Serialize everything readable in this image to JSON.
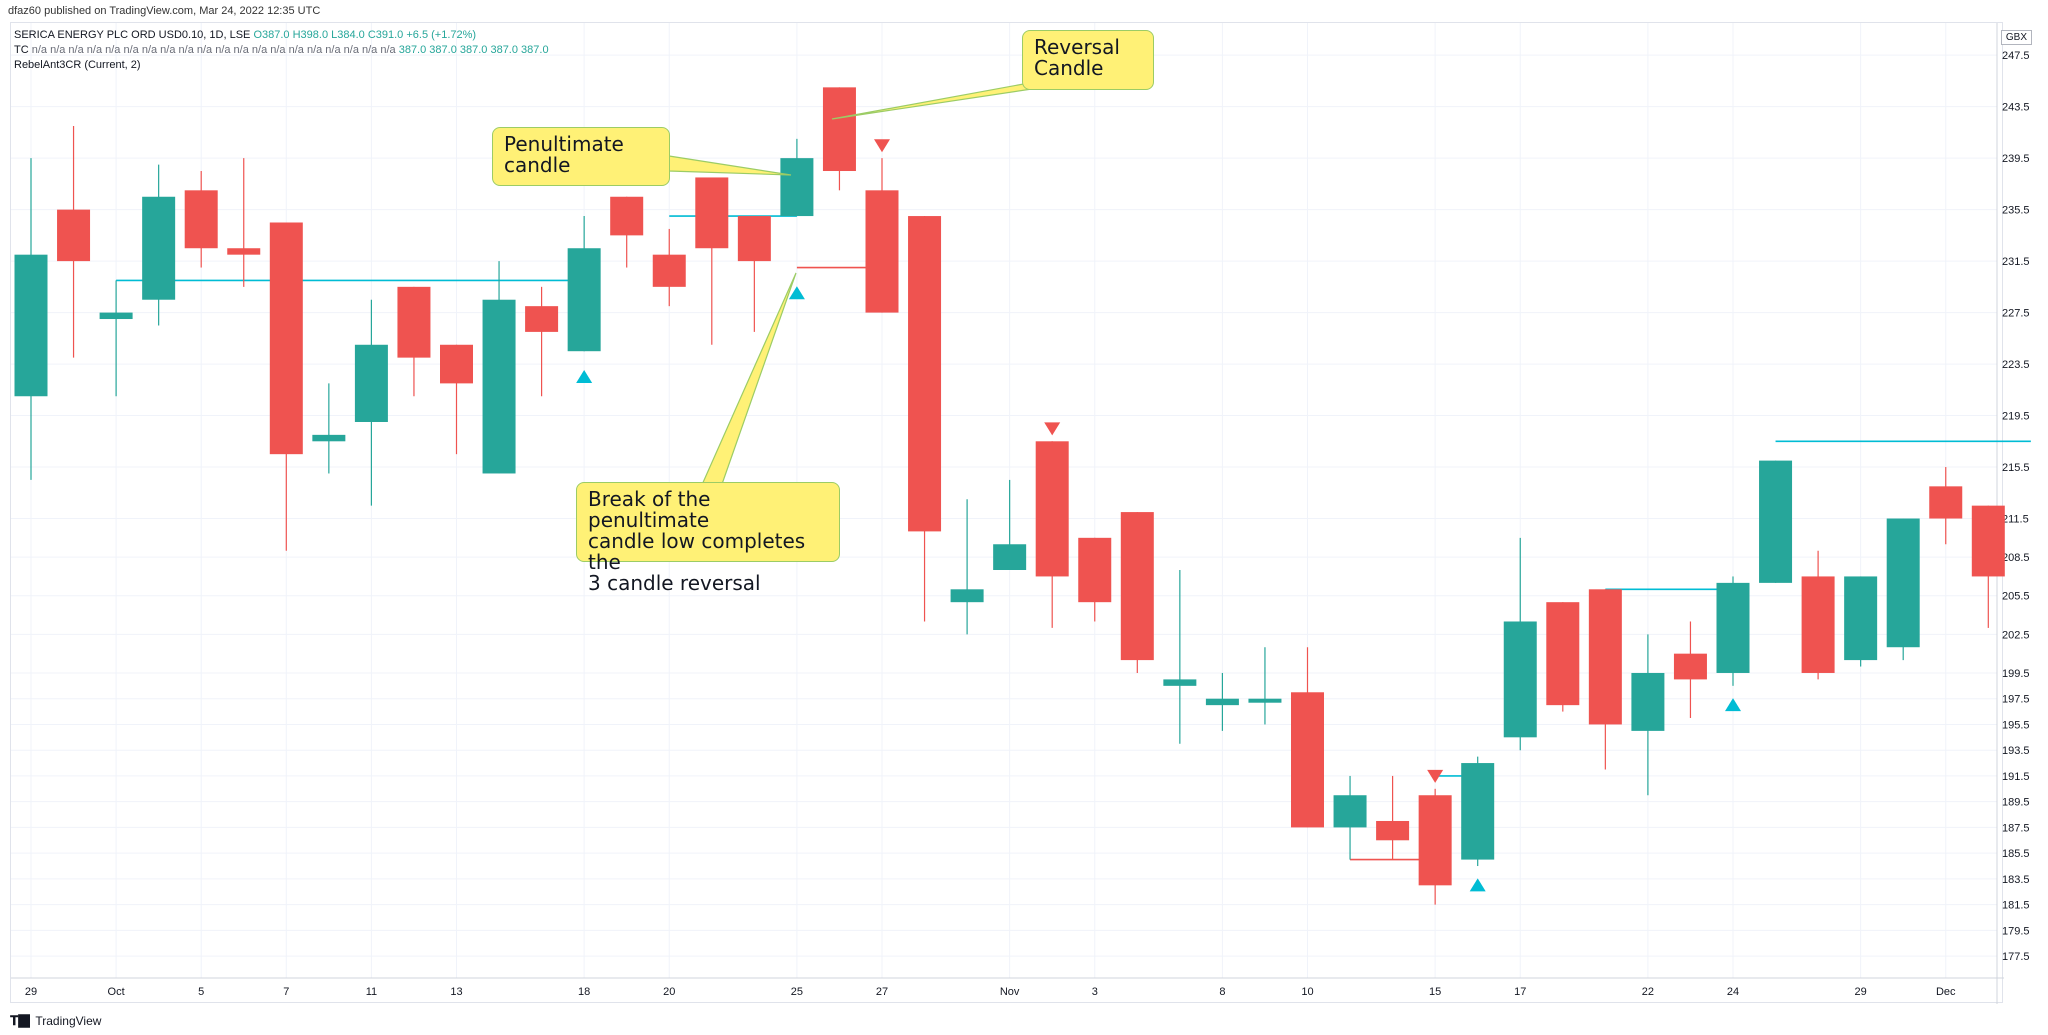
{
  "header": {
    "published": "dfaz60 published on TradingView.com, Mar 24, 2022 12:35 UTC"
  },
  "legend": {
    "symbol": "SERICA ENERGY PLC ORD USD0.10, 1D, LSE",
    "ohlc": "O387.0 H398.0 L384.0 C391.0 +6.5 (+1.72%)",
    "indicator1_name": "TC",
    "indicator1_values": "n/a n/a n/a n/a n/a n/a n/a n/a n/a n/a n/a n/a n/a n/a n/a n/a n/a n/a n/a n/a",
    "indicator1_nums": "387.0 387.0 387.0 387.0 387.0",
    "indicator2": "RebelAnt3CR (Current, 2)"
  },
  "currency": "GBX",
  "footer": {
    "brand": "TradingView"
  },
  "annotations": {
    "reversal": "Reversal\nCandle",
    "penultimate": "Penultimate\ncandle",
    "break": "Break of the penultimate\ncandle low completes the\n3 candle reversal"
  },
  "colors": {
    "up": "#26a69a",
    "down": "#ef5350",
    "grid": "#f0f3fa",
    "cyan": "#00bcd4",
    "note_bg": "#fff176",
    "note_border": "#9ccc65"
  },
  "chart_data": {
    "type": "candlestick",
    "ylim": [
      175.8,
      250.0
    ],
    "y_ticks": [
      "177.5",
      "179.5",
      "181.5",
      "183.5",
      "185.5",
      "187.5",
      "189.5",
      "191.5",
      "193.5",
      "195.5",
      "197.5",
      "199.5",
      "202.5",
      "205.5",
      "208.5",
      "211.5",
      "215.5",
      "219.5",
      "223.5",
      "227.5",
      "231.5",
      "235.5",
      "239.5",
      "243.5",
      "247.5"
    ],
    "x_ticks": [
      {
        "i": 0,
        "label": "29"
      },
      {
        "i": 2,
        "label": "Oct"
      },
      {
        "i": 4,
        "label": "5"
      },
      {
        "i": 6,
        "label": "7"
      },
      {
        "i": 8,
        "label": "11"
      },
      {
        "i": 10,
        "label": "13"
      },
      {
        "i": 13,
        "label": "18"
      },
      {
        "i": 15,
        "label": "20"
      },
      {
        "i": 18,
        "label": "25"
      },
      {
        "i": 20,
        "label": "27"
      },
      {
        "i": 23,
        "label": "Nov"
      },
      {
        "i": 25,
        "label": "3"
      },
      {
        "i": 28,
        "label": "8"
      },
      {
        "i": 30,
        "label": "10"
      },
      {
        "i": 33,
        "label": "15"
      },
      {
        "i": 35,
        "label": "17"
      },
      {
        "i": 38,
        "label": "22"
      },
      {
        "i": 40,
        "label": "24"
      },
      {
        "i": 43,
        "label": "29"
      },
      {
        "i": 45,
        "label": "Dec"
      }
    ],
    "candles": [
      {
        "o": 221.0,
        "h": 239.5,
        "l": 214.5,
        "c": 232.0
      },
      {
        "o": 235.5,
        "h": 242.0,
        "l": 224.0,
        "c": 231.5
      },
      {
        "o": 227.0,
        "h": 230.0,
        "l": 221.0,
        "c": 227.5
      },
      {
        "o": 228.5,
        "h": 239.0,
        "l": 226.5,
        "c": 236.5
      },
      {
        "o": 237.0,
        "h": 238.5,
        "l": 231.0,
        "c": 232.5
      },
      {
        "o": 232.5,
        "h": 239.5,
        "l": 229.5,
        "c": 232.0
      },
      {
        "o": 234.5,
        "h": 234.5,
        "l": 209.0,
        "c": 216.5
      },
      {
        "o": 217.5,
        "h": 222.0,
        "l": 215.0,
        "c": 218.0
      },
      {
        "o": 219.0,
        "h": 228.5,
        "l": 212.5,
        "c": 225.0
      },
      {
        "o": 229.5,
        "h": 229.5,
        "l": 221.0,
        "c": 224.0
      },
      {
        "o": 225.0,
        "h": 225.0,
        "l": 216.5,
        "c": 222.0
      },
      {
        "o": 215.0,
        "h": 231.5,
        "l": 215.0,
        "c": 228.5
      },
      {
        "o": 228.0,
        "h": 229.5,
        "l": 221.0,
        "c": 226.0
      },
      {
        "o": 224.5,
        "h": 235.0,
        "l": 224.5,
        "c": 232.5
      },
      {
        "o": 236.5,
        "h": 236.5,
        "l": 231.0,
        "c": 233.5
      },
      {
        "o": 232.0,
        "h": 234.0,
        "l": 228.0,
        "c": 229.5
      },
      {
        "o": 238.0,
        "h": 238.0,
        "l": 225.0,
        "c": 232.5
      },
      {
        "o": 235.0,
        "h": 235.0,
        "l": 226.0,
        "c": 231.5
      },
      {
        "o": 235.0,
        "h": 241.0,
        "l": 235.0,
        "c": 239.5
      },
      {
        "o": 245.0,
        "h": 245.0,
        "l": 237.0,
        "c": 238.5
      },
      {
        "o": 237.0,
        "h": 239.5,
        "l": 227.5,
        "c": 227.5
      },
      {
        "o": 235.0,
        "h": 235.0,
        "l": 203.5,
        "c": 210.5
      },
      {
        "o": 205.0,
        "h": 213.0,
        "l": 202.5,
        "c": 206.0
      },
      {
        "o": 207.5,
        "h": 214.5,
        "l": 207.5,
        "c": 209.5
      },
      {
        "o": 217.5,
        "h": 217.5,
        "l": 203.0,
        "c": 207.0
      },
      {
        "o": 210.0,
        "h": 210.0,
        "l": 203.5,
        "c": 205.0
      },
      {
        "o": 212.0,
        "h": 212.0,
        "l": 199.5,
        "c": 200.5
      },
      {
        "o": 198.5,
        "h": 207.5,
        "l": 194.0,
        "c": 199.0
      },
      {
        "o": 197.0,
        "h": 199.5,
        "l": 195.0,
        "c": 197.5
      },
      {
        "o": 197.5,
        "h": 201.5,
        "l": 195.5,
        "c": 197.5
      },
      {
        "o": 198.0,
        "h": 201.5,
        "l": 187.5,
        "c": 187.5
      },
      {
        "o": 187.5,
        "h": 191.5,
        "l": 185.0,
        "c": 190.0
      },
      {
        "o": 188.0,
        "h": 191.5,
        "l": 185.0,
        "c": 186.5
      },
      {
        "o": 190.0,
        "h": 190.5,
        "l": 181.5,
        "c": 183.0
      },
      {
        "o": 185.0,
        "h": 193.0,
        "l": 184.5,
        "c": 192.5
      },
      {
        "o": 194.5,
        "h": 210.0,
        "l": 193.5,
        "c": 203.5
      },
      {
        "o": 205.0,
        "h": 205.0,
        "l": 196.5,
        "c": 197.0
      },
      {
        "o": 206.0,
        "h": 206.0,
        "l": 192.0,
        "c": 195.5
      },
      {
        "o": 195.0,
        "h": 202.5,
        "l": 190.0,
        "c": 199.5
      },
      {
        "o": 201.0,
        "h": 203.5,
        "l": 196.0,
        "c": 199.0
      },
      {
        "o": 199.5,
        "h": 207.0,
        "l": 198.5,
        "c": 206.5
      },
      {
        "o": 206.5,
        "h": 216.0,
        "l": 206.5,
        "c": 216.0
      },
      {
        "o": 207.0,
        "h": 209.0,
        "l": 199.0,
        "c": 199.5
      },
      {
        "o": 200.5,
        "h": 207.0,
        "l": 200.0,
        "c": 207.0
      },
      {
        "o": 201.5,
        "h": 211.5,
        "l": 200.5,
        "c": 211.5
      },
      {
        "o": 214.0,
        "h": 215.5,
        "l": 209.5,
        "c": 211.5
      },
      {
        "o": 212.5,
        "h": 212.5,
        "l": 203.0,
        "c": 207.0
      }
    ],
    "markers": [
      {
        "i": 13,
        "type": "up",
        "price": 222.5
      },
      {
        "i": 18,
        "type": "up",
        "price": 229.0
      },
      {
        "i": 20,
        "type": "down",
        "price": 240.5
      },
      {
        "i": 24,
        "type": "down",
        "price": 218.5
      },
      {
        "i": 33,
        "type": "down",
        "price": 191.5
      },
      {
        "i": 34,
        "type": "up",
        "price": 183.0
      },
      {
        "i": 40,
        "type": "up",
        "price": 197.0
      }
    ],
    "lines": [
      {
        "from": 2,
        "to": 13,
        "price": 230.0,
        "color": "cyan"
      },
      {
        "from": 15,
        "to": 18,
        "price": 235.0,
        "color": "cyan"
      },
      {
        "from": 18,
        "to": 20,
        "price": 231.0,
        "color": "down"
      },
      {
        "from": 31,
        "to": 33,
        "price": 185.0,
        "color": "down"
      },
      {
        "from": 33,
        "to": 34,
        "price": 191.5,
        "color": "cyan"
      },
      {
        "from": 37,
        "to": 40,
        "price": 206.0,
        "color": "cyan"
      },
      {
        "from": 41,
        "to": 47,
        "price": 217.5,
        "color": "cyan"
      }
    ]
  }
}
